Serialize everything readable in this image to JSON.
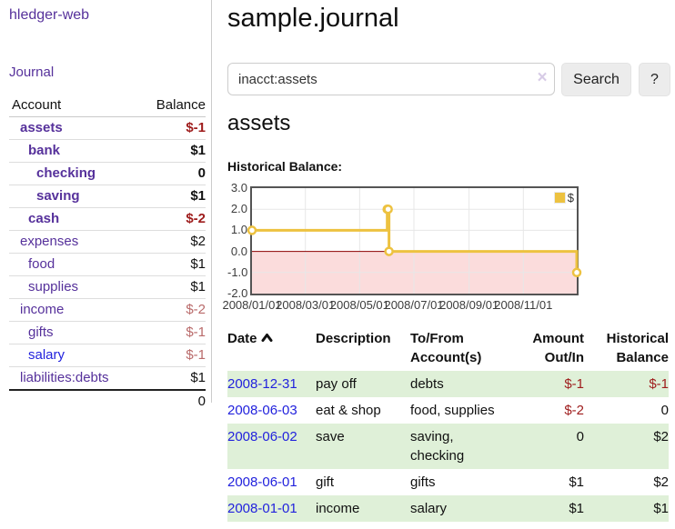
{
  "app": {
    "brand": "hledger-web"
  },
  "sidebar": {
    "nav_journal": "Journal",
    "accounts_table": {
      "headers": {
        "account": "Account",
        "balance": "Balance"
      },
      "rows": [
        {
          "label": "assets",
          "balance": "$-1",
          "depth": 1,
          "current": true,
          "balance_class": "neg"
        },
        {
          "label": "bank",
          "balance": "$1",
          "depth": 2,
          "current": true,
          "balance_class": ""
        },
        {
          "label": "checking",
          "balance": "0",
          "depth": 3,
          "current": true,
          "balance_class": ""
        },
        {
          "label": "saving",
          "balance": "$1",
          "depth": 3,
          "current": true,
          "balance_class": ""
        },
        {
          "label": "cash",
          "balance": "$-2",
          "depth": 2,
          "current": true,
          "balance_class": "neg"
        },
        {
          "label": "expenses",
          "balance": "$2",
          "depth": 1,
          "current": false,
          "balance_class": ""
        },
        {
          "label": "food",
          "balance": "$1",
          "depth": 2,
          "current": false,
          "balance_class": ""
        },
        {
          "label": "supplies",
          "balance": "$1",
          "depth": 2,
          "current": false,
          "balance_class": ""
        },
        {
          "label": "income",
          "balance": "$-2",
          "depth": 1,
          "current": false,
          "balance_class": "neg-muted"
        },
        {
          "label": "gifts",
          "balance": "$-1",
          "depth": 2,
          "current": false,
          "balance_class": "neg-muted"
        },
        {
          "label": "salary",
          "balance": "$-1",
          "depth": 2,
          "current": false,
          "balance_class": "neg-muted",
          "link_class": "blue"
        },
        {
          "label": "liabilities:debts",
          "balance": "$1",
          "depth": 1,
          "current": false,
          "balance_class": ""
        }
      ],
      "total": "0"
    }
  },
  "main": {
    "title": "sample.journal",
    "search": {
      "value": "inacct:assets",
      "clear_icon": "×",
      "button_label": "Search",
      "help_label": "?"
    },
    "account_heading": "assets",
    "chart_label": "Historical Balance:"
  },
  "chart_data": {
    "type": "line",
    "title": "Historical Balance",
    "step": true,
    "xlim": [
      "2008-01-01",
      "2008-12-31"
    ],
    "ylim": [
      -2,
      3
    ],
    "x_ticks": [
      "2008/01/01",
      "2008/03/01",
      "2008/05/01",
      "2008/07/01",
      "2008/09/01",
      "2008/11/01"
    ],
    "y_ticks": [
      3.0,
      2.0,
      1.0,
      0.0,
      -1.0,
      -2.0
    ],
    "series": [
      {
        "name": "$",
        "color": "#edc240",
        "points": [
          [
            "2008-01-01",
            1
          ],
          [
            "2008-06-01",
            2
          ],
          [
            "2008-06-02",
            2
          ],
          [
            "2008-06-03",
            0
          ],
          [
            "2008-12-31",
            -1
          ]
        ]
      }
    ],
    "legend_position": "top-right",
    "grid": true,
    "gridline_color": "#e7e7e7",
    "zero_line_color": "#8b0000",
    "negative_region_color": "#fbdcdc",
    "plot_border_color": "#545454"
  },
  "table": {
    "headers": [
      "Date",
      "Description",
      "To/From Account(s)",
      "Amount Out/In",
      "Historical Balance"
    ],
    "sort_icon": "chevron-up",
    "rows": [
      {
        "date": "2008-12-31",
        "description": "pay off",
        "accounts": "debts",
        "amount": "$-1",
        "amount_class": "neg",
        "balance": "$-1",
        "balance_class": "neg"
      },
      {
        "date": "2008-06-03",
        "description": "eat & shop",
        "accounts": "food, supplies",
        "amount": "$-2",
        "amount_class": "neg",
        "balance": "0",
        "balance_class": ""
      },
      {
        "date": "2008-06-02",
        "description": "save",
        "accounts": "saving, checking",
        "amount": "0",
        "amount_class": "",
        "balance": "$2",
        "balance_class": ""
      },
      {
        "date": "2008-06-01",
        "description": "gift",
        "accounts": "gifts",
        "amount": "$1",
        "amount_class": "",
        "balance": "$2",
        "balance_class": ""
      },
      {
        "date": "2008-01-01",
        "description": "income",
        "accounts": "salary",
        "amount": "$1",
        "amount_class": "",
        "balance": "$1",
        "balance_class": ""
      }
    ]
  }
}
